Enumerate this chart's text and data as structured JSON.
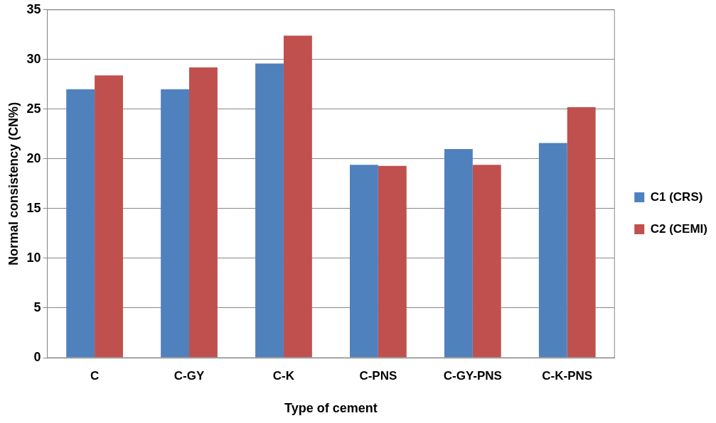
{
  "chart_data": {
    "type": "bar",
    "xlabel": "Type of cement",
    "ylabel": "Normal consistency (CN%)",
    "categories": [
      "C",
      "C-GY",
      "C-K",
      "C-PNS",
      "C-GY-PNS",
      "C-K-PNS"
    ],
    "series": [
      {
        "name": "C1 (CRS)",
        "color": "#4f81bd",
        "values": [
          27.0,
          27.0,
          29.6,
          19.4,
          21.0,
          21.6
        ]
      },
      {
        "name": "C2 (CEMI)",
        "color": "#c0504d",
        "values": [
          28.4,
          29.2,
          32.4,
          19.3,
          19.4,
          25.2
        ]
      }
    ],
    "ylim": [
      0,
      35
    ],
    "yticks": [
      0,
      5,
      10,
      15,
      20,
      25,
      30,
      35
    ],
    "grid": "y",
    "legend": "right"
  }
}
